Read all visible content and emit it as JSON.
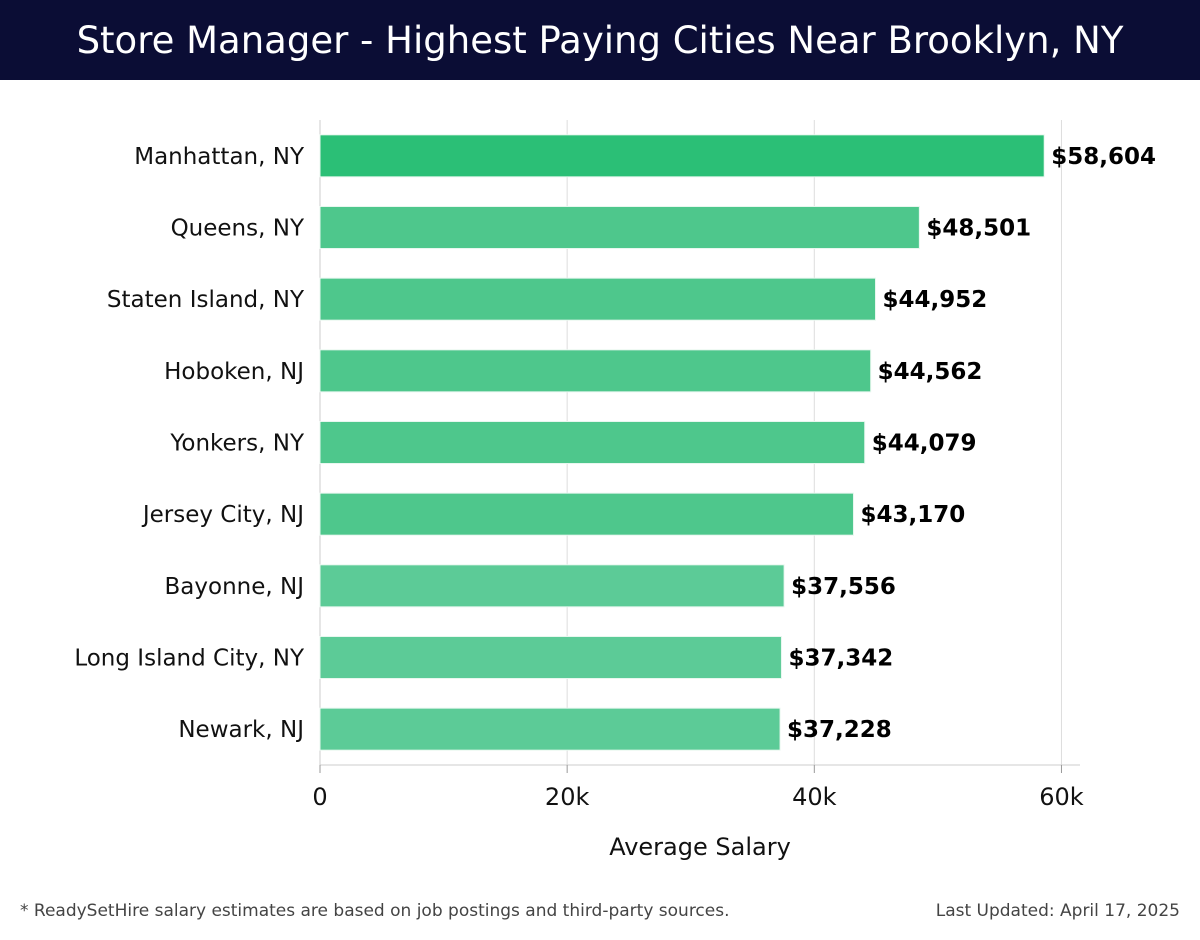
{
  "header": {
    "title": "Store Manager - Highest Paying Cities Near Brooklyn, NY"
  },
  "chart_data": {
    "type": "bar",
    "orientation": "horizontal",
    "categories": [
      "Manhattan, NY",
      "Queens, NY",
      "Staten Island, NY",
      "Hoboken, NJ",
      "Yonkers, NY",
      "Jersey City, NJ",
      "Bayonne, NJ",
      "Long Island City, NY",
      "Newark, NJ"
    ],
    "values": [
      58604,
      48501,
      44952,
      44562,
      44079,
      43170,
      37556,
      37342,
      37228
    ],
    "value_labels": [
      "$58,604",
      "$48,501",
      "$44,952",
      "$44,562",
      "$44,079",
      "$43,170",
      "$37,556",
      "$37,342",
      "$37,228"
    ],
    "xlabel": "Average Salary",
    "ylabel": "",
    "xlim": [
      0,
      61500
    ],
    "xticks": [
      0,
      20000,
      40000,
      60000
    ],
    "xtick_labels": [
      "0",
      "20k",
      "40k",
      "60k"
    ],
    "grid": "vertical",
    "colors": {
      "top_bar": "#2bbf76",
      "bar": "#4ec78c",
      "lower_bar": "#5ccb97",
      "gridline": "#dddddd",
      "axis": "#cccccc"
    }
  },
  "footer": {
    "note": "* ReadySetHire salary estimates are based on job postings and third-party sources.",
    "updated": "Last Updated: April 17, 2025"
  }
}
